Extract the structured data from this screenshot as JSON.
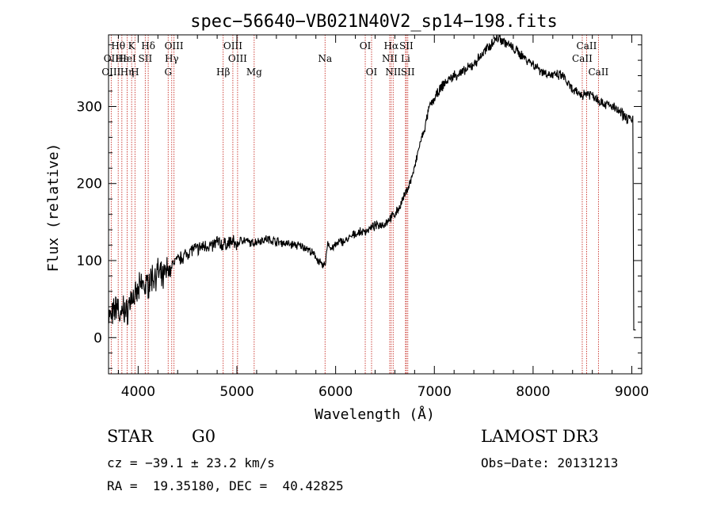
{
  "chart_data": {
    "type": "line",
    "title": "spec−56640−VB021N40V2_sp14−198.fits",
    "xlabel": "Wavelength (Å)",
    "ylabel": "Flux (relative)",
    "xlim": [
      3700,
      9100
    ],
    "ylim": [
      -47,
      393
    ],
    "xticks": [
      4000,
      5000,
      6000,
      7000,
      8000,
      9000
    ],
    "yticks": [
      0,
      100,
      200,
      300
    ],
    "grid": false,
    "series": [
      {
        "name": "flux",
        "x": [
          3700,
          3730,
          3760,
          3790,
          3820,
          3850,
          3880,
          3910,
          3940,
          3970,
          4000,
          4040,
          4080,
          4120,
          4160,
          4200,
          4250,
          4300,
          4330,
          4360,
          4400,
          4450,
          4500,
          4550,
          4600,
          4650,
          4700,
          4750,
          4800,
          4850,
          4900,
          4950,
          5000,
          5050,
          5100,
          5150,
          5200,
          5300,
          5400,
          5500,
          5600,
          5700,
          5800,
          5850,
          5880,
          5900,
          5920,
          5950,
          6000,
          6050,
          6100,
          6200,
          6300,
          6400,
          6500,
          6550,
          6600,
          6650,
          6700,
          6750,
          6800,
          6850,
          6900,
          6950,
          7000,
          7100,
          7200,
          7300,
          7400,
          7500,
          7600,
          7650,
          7700,
          7800,
          7900,
          8000,
          8100,
          8200,
          8300,
          8400,
          8500,
          8550,
          8600,
          8650,
          8700,
          8800,
          8900,
          8950,
          8980,
          9000,
          9010,
          9020,
          9040
        ],
        "y": [
          30,
          25,
          35,
          45,
          20,
          40,
          30,
          45,
          55,
          50,
          60,
          70,
          65,
          75,
          80,
          85,
          75,
          90,
          85,
          100,
          100,
          105,
          110,
          115,
          115,
          118,
          120,
          118,
          125,
          120,
          122,
          125,
          120,
          128,
          125,
          122,
          125,
          128,
          125,
          122,
          120,
          117,
          105,
          95,
          92,
          100,
          125,
          115,
          120,
          125,
          125,
          135,
          138,
          145,
          148,
          155,
          160,
          170,
          185,
          200,
          220,
          250,
          270,
          300,
          310,
          330,
          340,
          345,
          355,
          370,
          385,
          390,
          385,
          375,
          365,
          355,
          345,
          340,
          340,
          320,
          315,
          318,
          315,
          310,
          305,
          300,
          290,
          285,
          285,
          280,
          288,
          10,
          10
        ]
      }
    ],
    "lines": [
      {
        "label": "Hθ",
        "wl": 3798,
        "row": 1
      },
      {
        "label": "K",
        "wl": 3934,
        "row": 1
      },
      {
        "label": "Hδ",
        "wl": 4102,
        "row": 1
      },
      {
        "label": "OIII",
        "wl": 4363,
        "row": 1
      },
      {
        "label": "OIII",
        "wl": 4959,
        "row": 1
      },
      {
        "label": "OI",
        "wl": 6300,
        "row": 1
      },
      {
        "label": "Hα",
        "wl": 6563,
        "row": 1
      },
      {
        "label": "SII",
        "wl": 6716,
        "row": 1
      },
      {
        "label": "CaII",
        "wl": 8542,
        "row": 1
      },
      {
        "label": "OII",
        "wl": 3727,
        "row": 2
      },
      {
        "label": "Hε",
        "wl": 3835,
        "row": 2
      },
      {
        "label": "HeI",
        "wl": 3889,
        "row": 2
      },
      {
        "label": "SII",
        "wl": 4072,
        "row": 2
      },
      {
        "label": "Hγ",
        "wl": 4340,
        "row": 2
      },
      {
        "label": "OIII",
        "wl": 5007,
        "row": 2
      },
      {
        "label": "Na",
        "wl": 5893,
        "row": 2
      },
      {
        "label": "NII",
        "wl": 6548,
        "row": 2
      },
      {
        "label": "Li",
        "wl": 6708,
        "row": 2
      },
      {
        "label": "CaII",
        "wl": 8498,
        "row": 2
      },
      {
        "label": "OIII",
        "wl": 3727,
        "row": 3
      },
      {
        "label": "Hη",
        "wl": 3889,
        "row": 3
      },
      {
        "label": "H",
        "wl": 3968,
        "row": 3
      },
      {
        "label": "G",
        "wl": 4304,
        "row": 3
      },
      {
        "label": "Hβ",
        "wl": 4861,
        "row": 3
      },
      {
        "label": "Mg",
        "wl": 5175,
        "row": 3
      },
      {
        "label": "OI",
        "wl": 6364,
        "row": 3
      },
      {
        "label": "NII",
        "wl": 6583,
        "row": 3
      },
      {
        "label": "SII",
        "wl": 6731,
        "row": 3
      },
      {
        "label": "CaII",
        "wl": 8662,
        "row": 3
      }
    ]
  },
  "info": {
    "object_class": "STAR",
    "subclass": "G0",
    "survey": "LAMOST DR3",
    "cz": "cz = −39.1 ± 23.2 km/s",
    "obs_date": "Obs−Date: 20131213",
    "coords": "RA =  19.35180, DEC =  40.42825"
  },
  "colors": {
    "ink": "#000000",
    "line_marker": "#c8322a",
    "background": "#ffffff"
  }
}
